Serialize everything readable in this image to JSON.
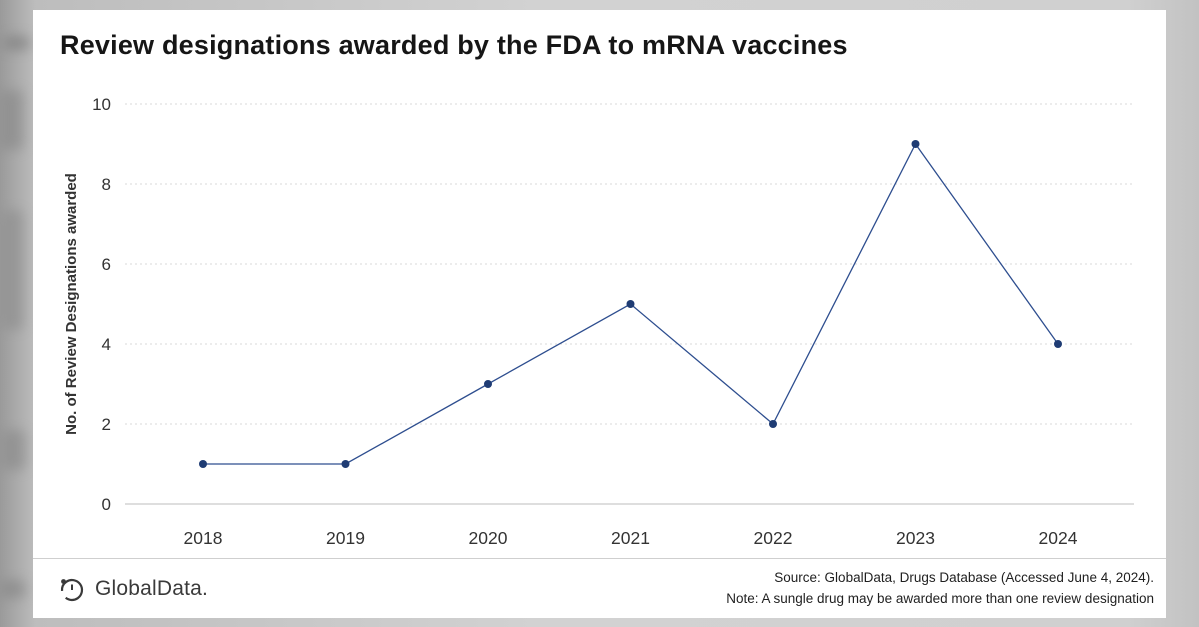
{
  "chart_data": {
    "type": "line",
    "title": "Review designations awarded by the FDA to mRNA vaccines",
    "categories": [
      "2018",
      "2019",
      "2020",
      "2021",
      "2022",
      "2023",
      "2024"
    ],
    "series": [
      {
        "name": "No. of Review Designations awarded",
        "values": [
          1,
          1,
          3,
          5,
          2,
          9,
          4
        ]
      }
    ],
    "xlabel": "",
    "ylabel": "No. of Review Designations  awarded",
    "ylim": [
      0,
      10
    ],
    "yticks": [
      0,
      2,
      4,
      6,
      8,
      10
    ],
    "grid": "horizontal-dotted",
    "legend": "none",
    "line_color": "#2e4e8f",
    "marker_color": "#1f3c74",
    "grid_color": "#d9d9d9",
    "axis_line_color": "#bdbdbd",
    "tick_label_color": "#333333"
  },
  "footer": {
    "logo_text": "GlobalData.",
    "source_line": "Source: GlobalData, Drugs Database (Accessed June 4, 2024).",
    "note_line": "Note: A sungle drug may be awarded more than one review designation"
  }
}
